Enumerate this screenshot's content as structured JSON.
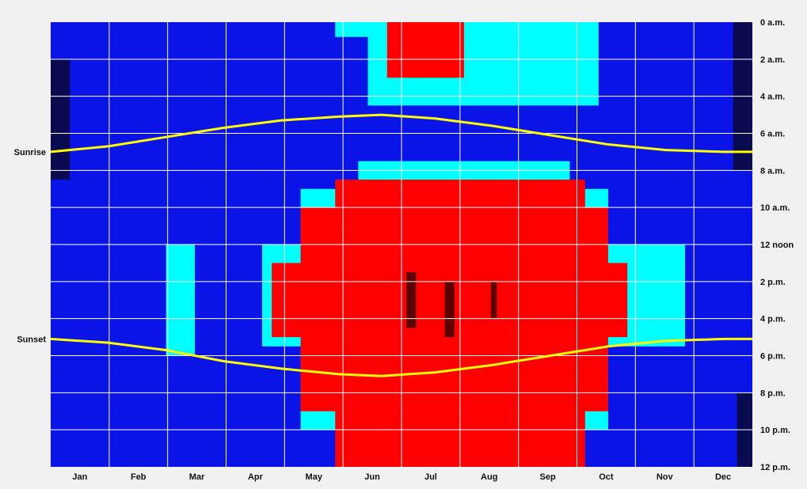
{
  "chart_data": {
    "type": "heatmap",
    "x_axis": {
      "categories": [
        "Jan",
        "Feb",
        "Mar",
        "Apr",
        "May",
        "Jun",
        "Jul",
        "Aug",
        "Sep",
        "Oct",
        "Nov",
        "Dec"
      ],
      "range_days": [
        0,
        365
      ]
    },
    "y_axis": {
      "tick_labels": [
        "0 a.m.",
        "2 a.m.",
        "4 a.m.",
        "6 a.m.",
        "8 a.m.",
        "10 a.m.",
        "12 noon",
        "2 p.m.",
        "4 p.m.",
        "6 p.m.",
        "8 p.m.",
        "10 p.m.",
        "12 p.m."
      ],
      "range_hours": [
        0,
        24
      ],
      "position": "right"
    },
    "grid": true,
    "color_levels": [
      "#0a0a50",
      "#0a14e6",
      "#00ffff",
      "#ff0000",
      "#5a0000"
    ],
    "background_color": "#0a14e6",
    "regions": [
      {
        "level": 2,
        "days": [
          148,
          198
        ],
        "hours": [
          0,
          0.8
        ]
      },
      {
        "level": 2,
        "days": [
          165,
          285
        ],
        "hours": [
          0,
          4.5
        ]
      },
      {
        "level": 3,
        "days": [
          175,
          215
        ],
        "hours": [
          0,
          3
        ]
      },
      {
        "level": 2,
        "days": [
          160,
          270
        ],
        "hours": [
          7.5,
          24
        ]
      },
      {
        "level": 2,
        "days": [
          130,
          290
        ],
        "hours": [
          9,
          22
        ]
      },
      {
        "level": 2,
        "days": [
          110,
          330
        ],
        "hours": [
          12,
          17.5
        ]
      },
      {
        "level": 2,
        "days": [
          60,
          75
        ],
        "hours": [
          12,
          18
        ]
      },
      {
        "level": 3,
        "days": [
          148,
          278
        ],
        "hours": [
          8.5,
          24
        ]
      },
      {
        "level": 3,
        "days": [
          130,
          290
        ],
        "hours": [
          10,
          21
        ]
      },
      {
        "level": 3,
        "days": [
          115,
          300
        ],
        "hours": [
          13,
          17
        ]
      },
      {
        "level": 4,
        "days": [
          185,
          190
        ],
        "hours": [
          13.5,
          16.5
        ]
      },
      {
        "level": 4,
        "days": [
          205,
          210
        ],
        "hours": [
          14,
          17
        ]
      },
      {
        "level": 4,
        "days": [
          229,
          232
        ],
        "hours": [
          14,
          16
        ]
      },
      {
        "level": 0,
        "days": [
          0,
          10
        ],
        "hours": [
          2,
          8.5
        ]
      },
      {
        "level": 0,
        "days": [
          355,
          365
        ],
        "hours": [
          0,
          8
        ]
      },
      {
        "level": 0,
        "days": [
          357,
          365
        ],
        "hours": [
          20,
          24
        ]
      }
    ],
    "series": [
      {
        "name": "Sunrise",
        "color": "#ffff00",
        "x_days": [
          0,
          30,
          60,
          90,
          120,
          150,
          172,
          200,
          230,
          260,
          290,
          320,
          350,
          365
        ],
        "y_hours": [
          7.0,
          6.7,
          6.2,
          5.7,
          5.3,
          5.1,
          5.0,
          5.2,
          5.6,
          6.1,
          6.6,
          6.9,
          7.0,
          7.0
        ]
      },
      {
        "name": "Sunset",
        "color": "#ffff00",
        "x_days": [
          0,
          30,
          60,
          90,
          120,
          150,
          172,
          200,
          230,
          260,
          290,
          320,
          350,
          365
        ],
        "y_hours": [
          17.1,
          17.3,
          17.7,
          18.3,
          18.7,
          19.0,
          19.1,
          18.9,
          18.5,
          18.0,
          17.5,
          17.2,
          17.1,
          17.1
        ]
      }
    ]
  }
}
